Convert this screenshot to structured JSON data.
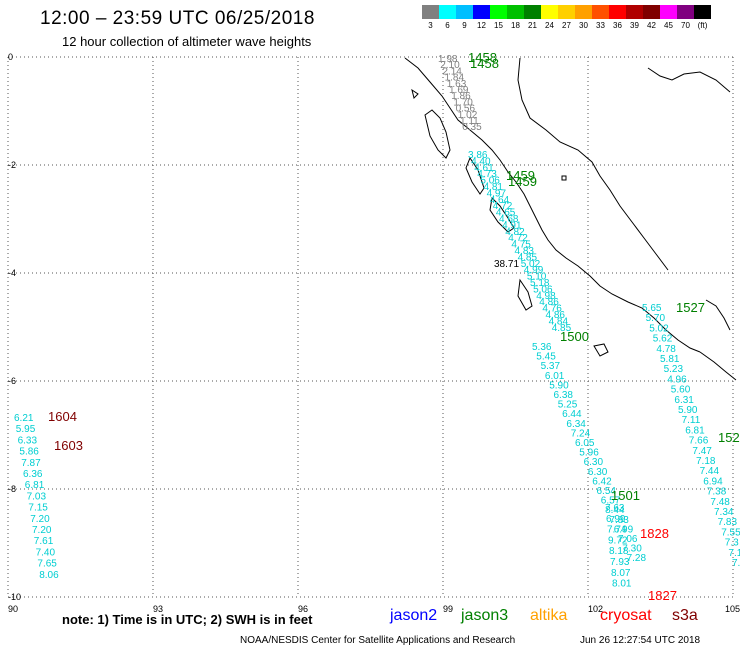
{
  "header": {
    "title": "12:00 – 23:59 UTC 06/25/2018",
    "subtitle": "12 hour collection of altimeter wave heights"
  },
  "scale": {
    "unit": "(ft)",
    "labels": [
      "3",
      "6",
      "9",
      "12",
      "15",
      "18",
      "21",
      "24",
      "27",
      "30",
      "33",
      "36",
      "39",
      "42",
      "45",
      "70"
    ],
    "colors": [
      "#808080",
      "#00ffff",
      "#00bfff",
      "#0000ff",
      "#00ff00",
      "#00c000",
      "#008000",
      "#ffff00",
      "#ffd000",
      "#ffa000",
      "#ff5000",
      "#ff0000",
      "#b00000",
      "#800000",
      "#ff00ff",
      "#800080",
      "#000000"
    ]
  },
  "axes": {
    "lon_ticks": [
      "90",
      "93",
      "96",
      "99",
      "102",
      "105"
    ],
    "lat_ticks": [
      "0",
      "-2",
      "-4",
      "-6",
      "-8",
      "-10"
    ]
  },
  "tracks": [
    {
      "color": "#808080",
      "values": [
        "1.98",
        "2.10",
        "2.14",
        "1.84",
        "1.63",
        "1.69",
        "1.86",
        "1.70",
        "0.56",
        "1.02",
        "1.11",
        "0.35"
      ]
    },
    {
      "color": "#00ced1",
      "values": [
        "3.86",
        "4.40",
        "4.61",
        "4.73",
        "5.06",
        "4.81",
        "4.97",
        "4.64",
        "4.72",
        "4.65",
        "4.68",
        "4.91",
        "4.82",
        "4.72",
        "4.75",
        "4.83",
        "4.85",
        "5.02",
        "4.99",
        "5.10",
        "5.18",
        "5.06",
        "4.98",
        "4.86",
        "4.76",
        "4.86",
        "4.84",
        "4.85"
      ]
    },
    {
      "color": "#00ced1",
      "values": [
        "5.36",
        "5.45",
        "5.37",
        "6.01",
        "5.90",
        "6.38",
        "5.25",
        "6.44",
        "6.34",
        "7.24",
        "6.05",
        "5.96",
        "6.30",
        "6.30",
        "6.42",
        "6.54",
        "6.57",
        "8.44",
        "7.83",
        "6.99",
        "7.06",
        "7.30",
        "7.28"
      ]
    },
    {
      "color": "#00ced1",
      "values": [
        "7.63",
        "6.99",
        "7.74",
        "9.72",
        "8.18",
        "7.93",
        "8.07",
        "8.01"
      ]
    },
    {
      "color": "#00ced1",
      "values": [
        "5.65",
        "5.70",
        "5.02",
        "5.62",
        "4.78",
        "5.81",
        "5.23",
        "4.96",
        "5.60",
        "6.31",
        "5.90",
        "7.11",
        "6.81",
        "7.66",
        "7.47",
        "7.18",
        "7.44",
        "6.94",
        "7.38",
        "7.48",
        "7.34",
        "7.83",
        "7.55",
        "7.3",
        "7.1",
        "7.0"
      ]
    },
    {
      "color": "#00ced1",
      "values": [
        "6.21",
        "5.95",
        "6.33",
        "5.86",
        "7.87",
        "6.36",
        "6.81",
        "7.03",
        "7.15",
        "7.20",
        "7.20",
        "7.61",
        "7.40",
        "7.65",
        "8.06"
      ]
    }
  ],
  "extra_value": "38.71",
  "time_labels": [
    {
      "text": "1458",
      "color": "#008000"
    },
    {
      "text": "1458",
      "color": "#008000"
    },
    {
      "text": "1459",
      "color": "#008000"
    },
    {
      "text": "1459",
      "color": "#008000"
    },
    {
      "text": "1500",
      "color": "#008000"
    },
    {
      "text": "1501",
      "color": "#008000"
    },
    {
      "text": "1527",
      "color": "#008000"
    },
    {
      "text": "152",
      "color": "#008000"
    },
    {
      "text": "1604",
      "color": "#800000"
    },
    {
      "text": "1603",
      "color": "#800000"
    },
    {
      "text": "1828",
      "color": "#ff0000"
    },
    {
      "text": "1827",
      "color": "#ff0000"
    }
  ],
  "legend": {
    "note": "note: 1) Time is in UTC; 2) SWH is in feet",
    "satellites": [
      {
        "name": "jason2",
        "color": "#0000ff"
      },
      {
        "name": "jason3",
        "color": "#008000"
      },
      {
        "name": "altika",
        "color": "#ffa000"
      },
      {
        "name": "cryosat",
        "color": "#ff0000"
      },
      {
        "name": "s3a",
        "color": "#800000"
      }
    ]
  },
  "footer": {
    "credit": "NOAA/NESDIS Center for Satellite Applications and Research",
    "timestamp": "Jun 26 12:27:54 UTC 2018"
  }
}
